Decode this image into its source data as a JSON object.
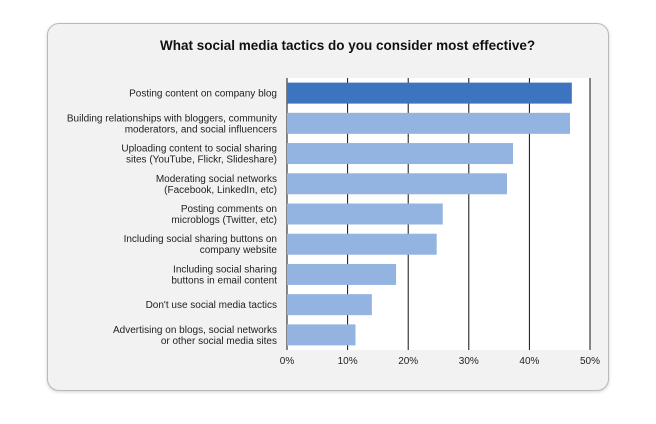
{
  "chart_data": {
    "type": "bar",
    "orientation": "horizontal",
    "title": "What social media tactics do you consider most effective?",
    "categories": [
      [
        "Posting content on company blog"
      ],
      [
        "Building relationships with bloggers, community",
        "moderators, and social influencers"
      ],
      [
        "Uploading content to social sharing",
        "sites (YouTube, Flickr, Slideshare)"
      ],
      [
        "Moderating social networks",
        "(Facebook, LinkedIn, etc)"
      ],
      [
        "Posting comments on",
        "microblogs (Twitter, etc)"
      ],
      [
        "Including social sharing buttons on",
        "company website"
      ],
      [
        "Including social sharing",
        "buttons in email content"
      ],
      [
        "Don't use social media tactics"
      ],
      [
        "Advertising on blogs, social networks",
        "or other social media sites"
      ]
    ],
    "values": [
      47,
      46.7,
      37.3,
      36.3,
      25.7,
      24.7,
      18,
      14,
      11.3
    ],
    "xlim": [
      0,
      50
    ],
    "ticks": [
      0,
      10,
      20,
      30,
      40,
      50
    ],
    "tick_labels": [
      "0%",
      "10%",
      "20%",
      "30%",
      "40%",
      "50%"
    ],
    "grid": true,
    "colors": {
      "highlight": "#3d74bf",
      "bar": "#93b3e1",
      "grid": "#111111"
    }
  }
}
